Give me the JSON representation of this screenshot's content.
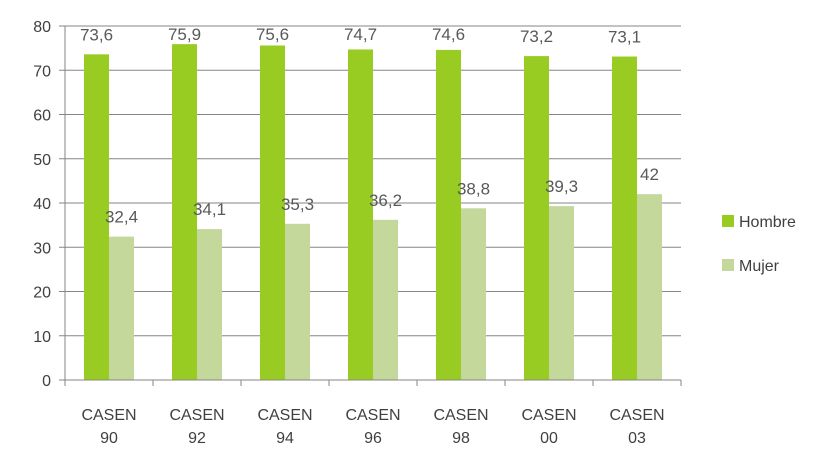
{
  "chart_data": {
    "type": "bar",
    "categories": [
      "CASEN 90",
      "CASEN 92",
      "CASEN 94",
      "CASEN 96",
      "CASEN 98",
      "CASEN 00",
      "CASEN 03"
    ],
    "category_lines": [
      [
        "CASEN",
        "90"
      ],
      [
        "CASEN",
        "92"
      ],
      [
        "CASEN",
        "94"
      ],
      [
        "CASEN",
        "96"
      ],
      [
        "CASEN",
        "98"
      ],
      [
        "CASEN",
        "00"
      ],
      [
        "CASEN",
        "03"
      ]
    ],
    "series": [
      {
        "name": "Hombre",
        "values": [
          73.6,
          75.9,
          75.6,
          74.7,
          74.6,
          73.2,
          73.1
        ],
        "labels": [
          "73,6",
          "75,9",
          "75,6",
          "74,7",
          "74,6",
          "73,2",
          "73,1"
        ],
        "color": "#99CC22"
      },
      {
        "name": "Mujer",
        "values": [
          32.4,
          34.1,
          35.3,
          36.2,
          38.8,
          39.3,
          42
        ],
        "labels": [
          "32,4",
          "34,1",
          "35,3",
          "36,2",
          "38,8",
          "39,3",
          "42"
        ],
        "color": "#C4D89C"
      }
    ],
    "ylim": [
      0,
      80
    ],
    "yticks": [
      "0",
      "10",
      "20",
      "30",
      "40",
      "50",
      "60",
      "70",
      "80"
    ],
    "grid": true,
    "legend_position": "right",
    "title": "",
    "xlabel": "",
    "ylabel": ""
  }
}
